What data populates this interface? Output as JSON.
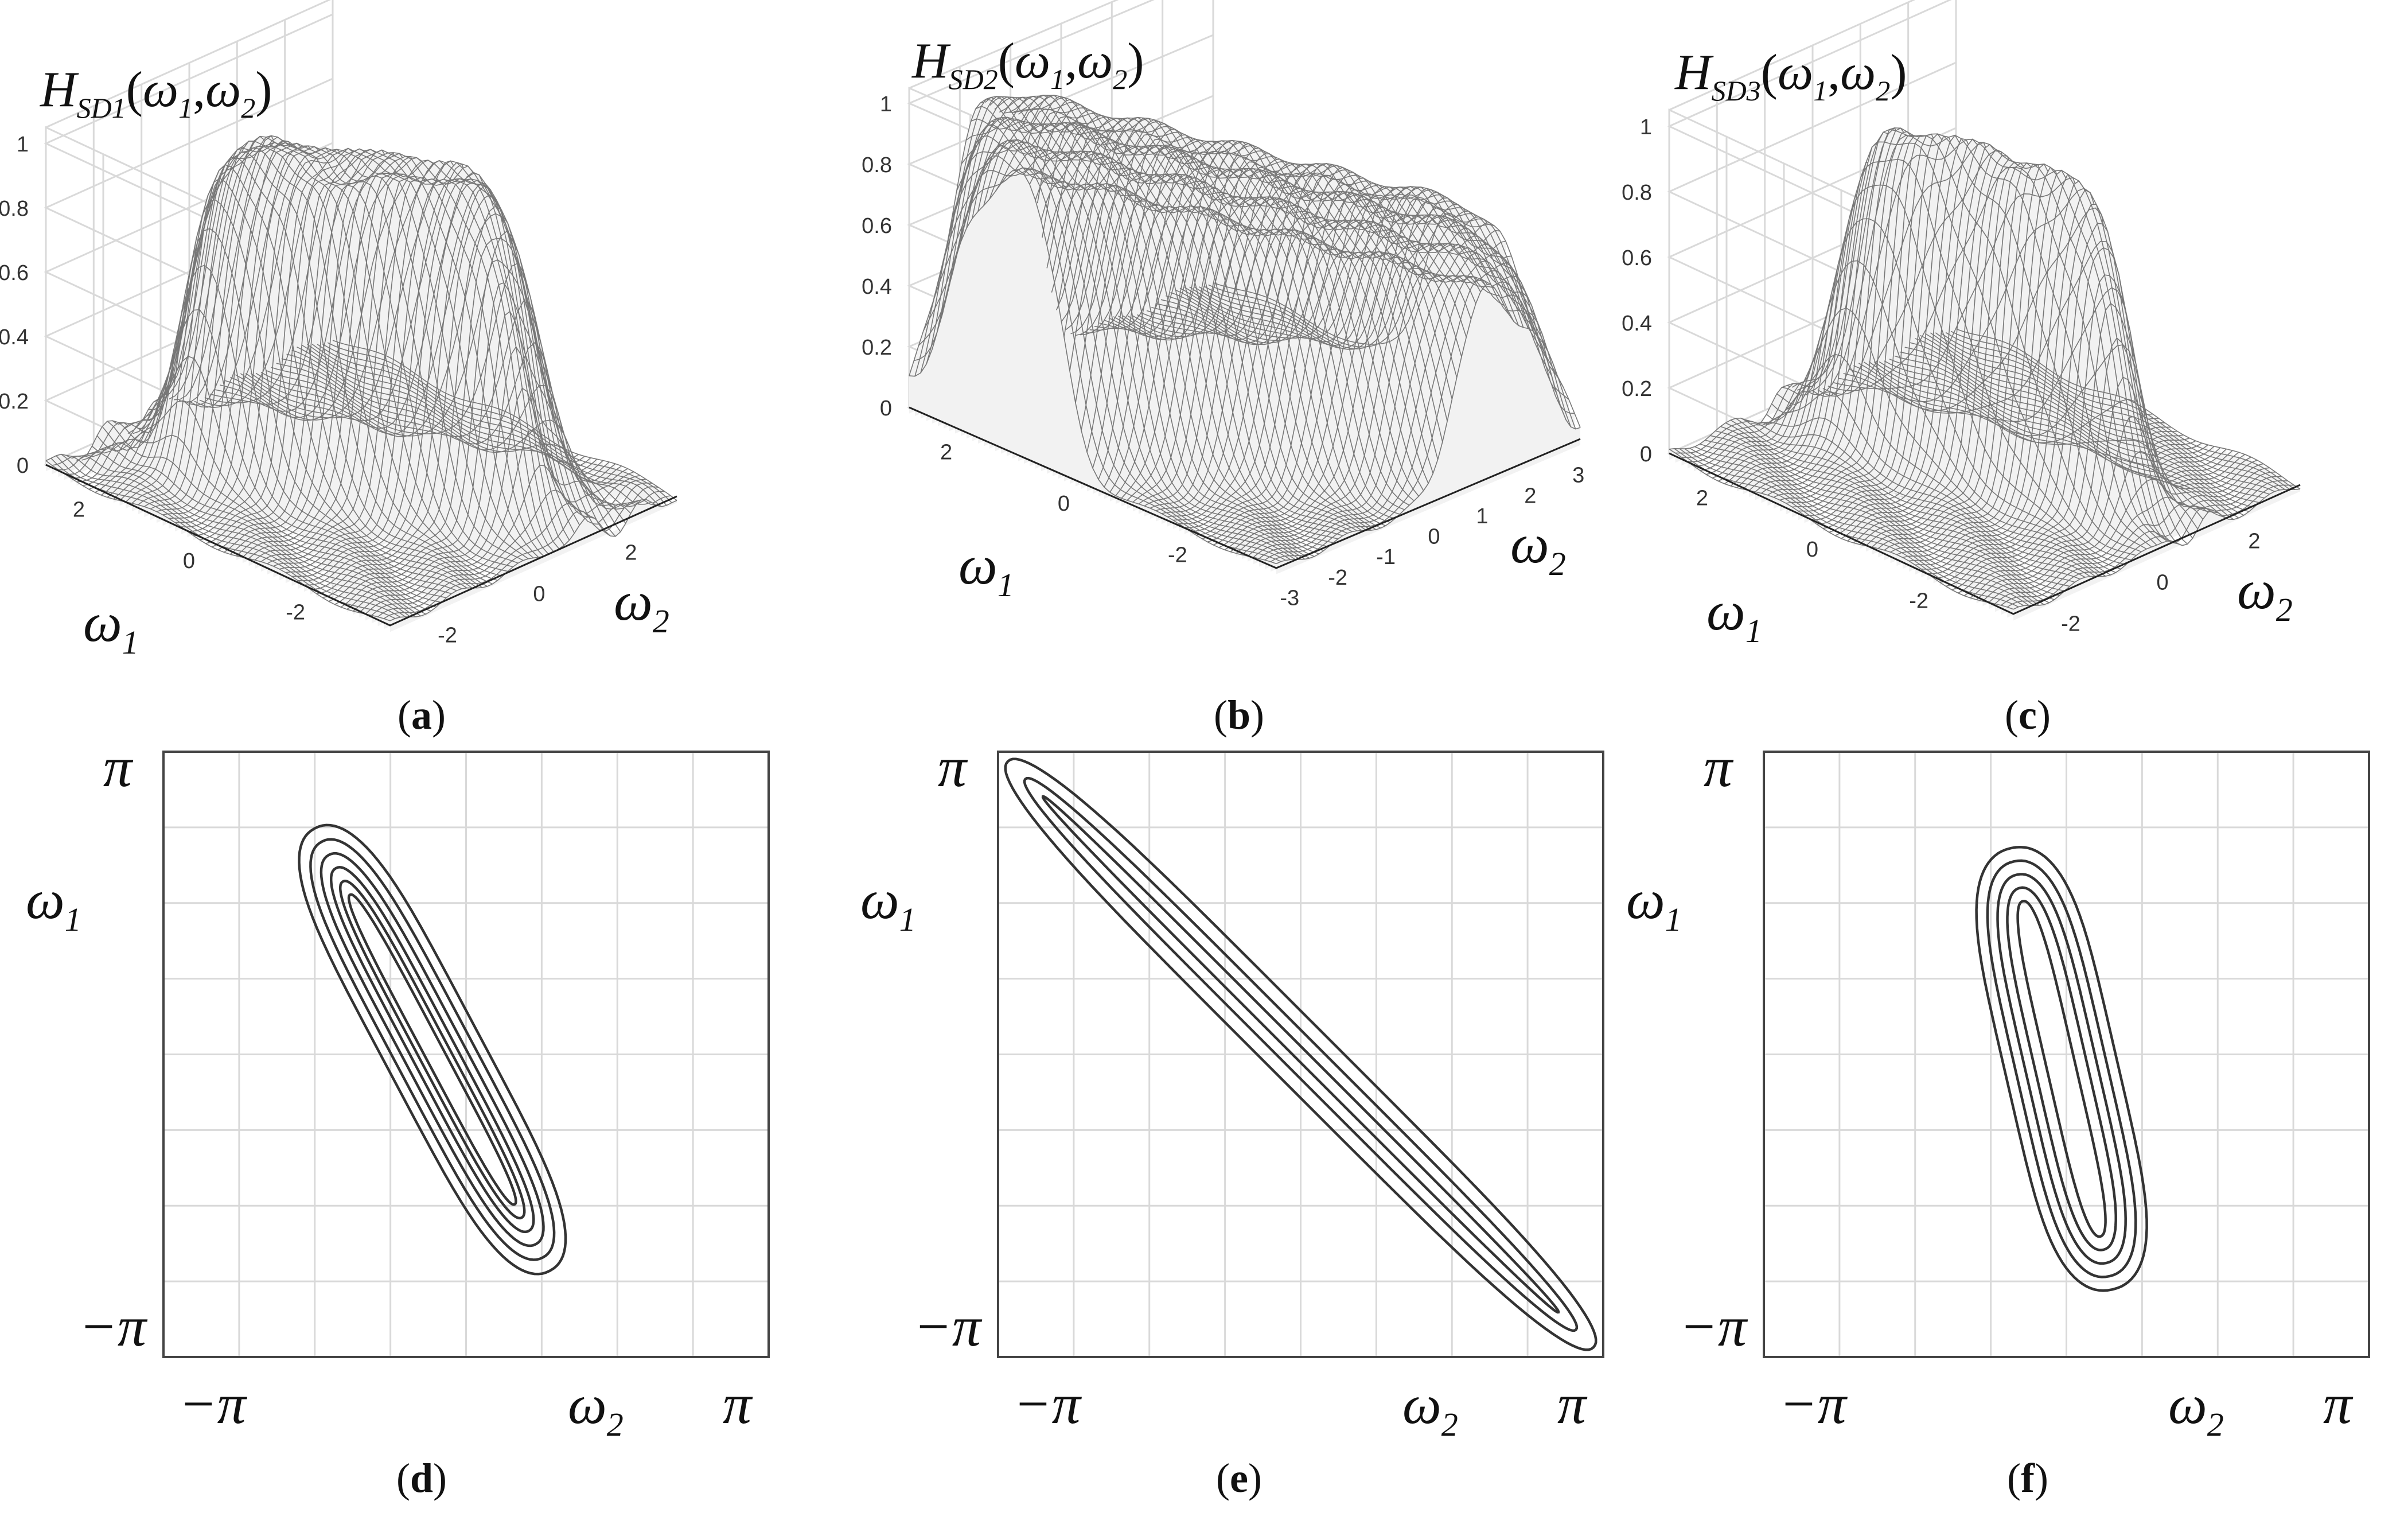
{
  "chart_data": [
    {
      "id": "a",
      "type": "surface",
      "caption": "a",
      "title_main": "H",
      "title_sub": "SD1",
      "title_args": [
        "(",
        "ω",
        "1",
        ",",
        "ω",
        "2",
        ")"
      ],
      "zticks": [
        "1",
        "0.8",
        "0.6",
        "0.4",
        "0.2",
        "0"
      ],
      "w1_ticks": [
        "2",
        "0",
        "-2"
      ],
      "w2_ticks": [
        "-2",
        "0",
        "2"
      ],
      "xlabel": "ω",
      "xlabel_sub": "2",
      "ylabel": "ω",
      "ylabel_sub": "1",
      "zlim": [
        0,
        1
      ],
      "peak": 0.93,
      "passband": "diagonal strip, orientation ≈ -60°"
    },
    {
      "id": "b",
      "type": "surface",
      "caption": "b",
      "title_main": "H",
      "title_sub": "SD2",
      "title_args": [
        "(",
        "ω",
        "1",
        ",",
        "ω",
        "2",
        ")"
      ],
      "zticks": [
        "1",
        "0.8",
        "0.6",
        "0.4",
        "0.2",
        "0"
      ],
      "w1_ticks": [
        "2",
        "0",
        "-2"
      ],
      "w2_ticks": [
        "-3",
        "-2",
        "-1",
        "0",
        "1",
        "2",
        "3"
      ],
      "xlabel": "ω",
      "xlabel_sub": "2",
      "ylabel": "ω",
      "ylabel_sub": "1",
      "zlim": [
        0,
        1
      ],
      "peak": 0.85,
      "passband": "diagonal strip, orientation ≈ -45°"
    },
    {
      "id": "c",
      "type": "surface",
      "caption": "c",
      "title_main": "H",
      "title_sub": "SD3",
      "title_args": [
        "(",
        "ω",
        "1",
        ",",
        "ω",
        "2",
        ")"
      ],
      "zticks": [
        "1",
        "0.8",
        "0.6",
        "0.4",
        "0.2",
        "0"
      ],
      "w1_ticks": [
        "2",
        "0",
        "-2"
      ],
      "w2_ticks": [
        "-2",
        "0",
        "2"
      ],
      "xlabel": "ω",
      "xlabel_sub": "2",
      "ylabel": "ω",
      "ylabel_sub": "1",
      "zlim": [
        0,
        1
      ],
      "peak": 0.93,
      "passband": "narrow diagonal strip, orientation ≈ -75°"
    },
    {
      "id": "d",
      "type": "contour",
      "caption": "d",
      "y_top": "π",
      "y_bottom": "−π",
      "ylabel": "ω",
      "ylabel_sub": "1",
      "x_left": "−π",
      "x_right": "π",
      "xlabel": "ω",
      "xlabel_sub": "2",
      "xlim": [
        -3.1416,
        3.1416
      ],
      "ylim": [
        -3.1416,
        3.1416
      ],
      "orientation_deg": -62,
      "center": [
        -0.35,
        0.05
      ],
      "half_length": 2.6,
      "half_widths": [
        0.5,
        0.4,
        0.31,
        0.23,
        0.16,
        0.1
      ]
    },
    {
      "id": "e",
      "type": "contour",
      "caption": "e",
      "y_top": "π",
      "y_bottom": "−π",
      "ylabel": "ω",
      "ylabel_sub": "1",
      "x_left": "−π",
      "x_right": "π",
      "xlabel": "ω",
      "xlabel_sub": "2",
      "xlim": [
        -3.1416,
        3.1416
      ],
      "ylim": [
        -3.1416,
        3.1416
      ],
      "orientation_deg": -45,
      "center": [
        0.0,
        0.0
      ],
      "half_length": 4.3,
      "half_widths": [
        0.32,
        0.18,
        0.06
      ]
    },
    {
      "id": "f",
      "type": "contour",
      "caption": "f",
      "y_top": "π",
      "y_bottom": "−π",
      "ylabel": "ω",
      "ylabel_sub": "1",
      "x_left": "−π",
      "x_right": "π",
      "xlabel": "ω",
      "xlabel_sub": "2",
      "xlim": [
        -3.1416,
        3.1416
      ],
      "ylim": [
        -3.1416,
        3.1416
      ],
      "orientation_deg": -77,
      "center": [
        -0.05,
        -0.15
      ],
      "half_length": 2.35,
      "half_widths": [
        0.58,
        0.47,
        0.37,
        0.27,
        0.15
      ]
    }
  ]
}
